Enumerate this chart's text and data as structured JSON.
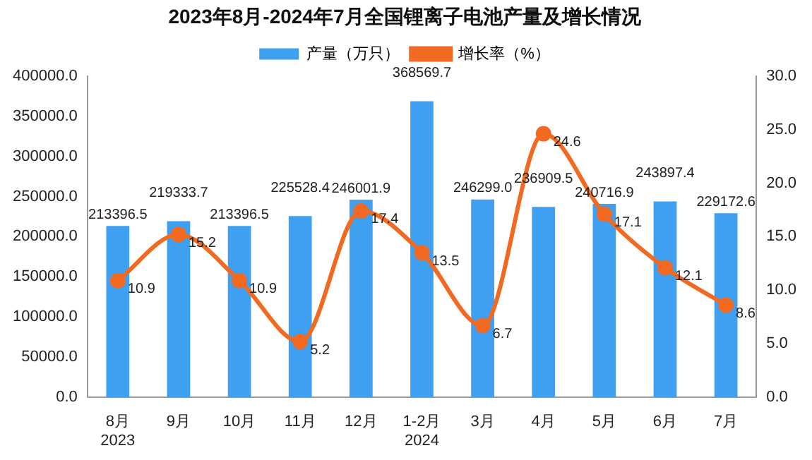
{
  "chart_data": {
    "type": "bar",
    "title": "2023年8月-2024年7月全国锂离子电池产量及增长情况",
    "categories": [
      "8月\n2023",
      "9月",
      "10月",
      "11月",
      "12月",
      "1-2月\n2024",
      "3月",
      "4月",
      "5月",
      "6月",
      "7月"
    ],
    "series": [
      {
        "name": "产量（万只）",
        "color": "#3f9ff0",
        "values": [
          213396.5,
          219333.7,
          213396.5,
          225528.4,
          246001.9,
          368569.7,
          246299.0,
          236909.5,
          240716.9,
          243897.4,
          229172.6
        ],
        "value_labels": [
          "213396.5",
          "219333.7",
          "213396.5",
          "225528.4",
          "246001.9",
          "368569.7",
          "246299.0",
          "236909.5",
          "240716.9",
          "243897.4",
          "229172.6"
        ]
      },
      {
        "name": "增长率（%）",
        "type": "line",
        "axis": "y2",
        "color": "#f26a21",
        "values": [
          10.9,
          15.2,
          10.9,
          5.2,
          17.4,
          13.5,
          6.7,
          24.6,
          17.1,
          12.1,
          8.6
        ],
        "value_labels": [
          "10.9",
          "15.2",
          "10.9",
          "5.2",
          "17.4",
          "13.5",
          "6.7",
          "24.6",
          "17.1",
          "12.1",
          "8.6"
        ]
      }
    ],
    "ylim": [
      0,
      400000
    ],
    "yticks": [
      {
        "value": 0,
        "label": "0.0"
      },
      {
        "value": 50000,
        "label": "50000.0"
      },
      {
        "value": 100000,
        "label": "100000.0"
      },
      {
        "value": 150000,
        "label": "150000.0"
      },
      {
        "value": 200000,
        "label": "200000.0"
      },
      {
        "value": 250000,
        "label": "250000.0"
      },
      {
        "value": 300000,
        "label": "300000.0"
      },
      {
        "value": 350000,
        "label": "350000.0"
      },
      {
        "value": 400000,
        "label": "400000.0"
      }
    ],
    "y2lim": [
      0,
      30
    ],
    "y2ticks": [
      {
        "value": 0,
        "label": "0.0"
      },
      {
        "value": 5,
        "label": "5.0"
      },
      {
        "value": 10,
        "label": "10.0"
      },
      {
        "value": 15,
        "label": "15.0"
      },
      {
        "value": 20,
        "label": "20.0"
      },
      {
        "value": 25,
        "label": "25.0"
      },
      {
        "value": 30,
        "label": "30.0"
      }
    ],
    "legend": "top",
    "grid": false,
    "marker": "circle",
    "line_style": "solid"
  }
}
